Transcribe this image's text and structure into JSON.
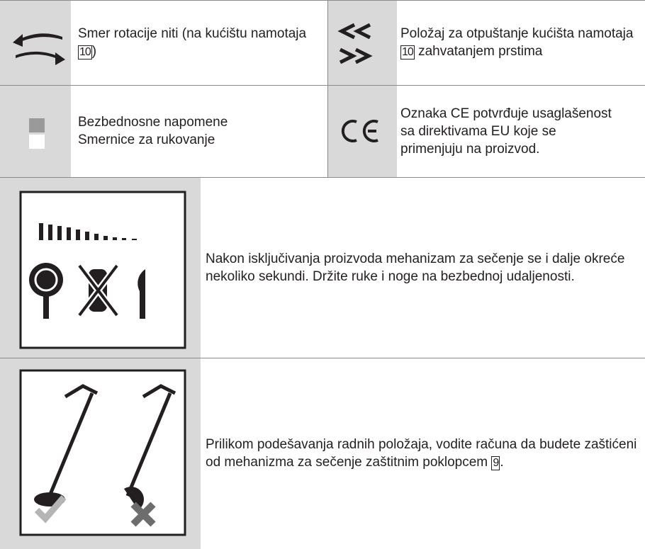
{
  "rows": [
    {
      "left": {
        "before": "Smer rotacije niti (na kućištu namotaja ",
        "ref": "10",
        "after": ")"
      },
      "right": {
        "before": "Položaj za otpuštanje kućišta namotaja ",
        "ref": "10",
        "after": " zahvatanjem prstima"
      }
    },
    {
      "left": {
        "lines": [
          "Bezbednosne napomene",
          "Smernice za rukovanje"
        ]
      },
      "right": {
        "text": "Oznaka CE potvrđuje usaglašenost sa direktivama EU koje se primenjuju na proizvod."
      }
    }
  ],
  "warnings": [
    {
      "text": "Nakon isključivanja proizvoda mehanizam za sečenje se i dalje okreće nekoliko sekundi. Držite ruke i noge na bezbednoj udaljenosti."
    },
    {
      "before": "Prilikom podešavanja radnih položaja, vodite računa da budete zaštićeni od mehanizma za sečenje zaštitnim poklopcem ",
      "ref": "9",
      "after": "."
    }
  ]
}
